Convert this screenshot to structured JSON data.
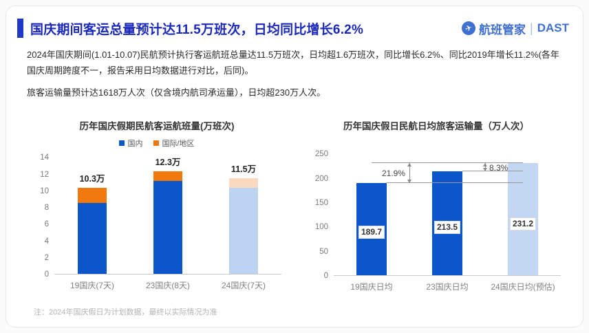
{
  "header": {
    "title": "国庆期间客运总量预计达11.5万班次，日均同比增长6.2%",
    "logo": {
      "brand": "航班管家",
      "divider": "|",
      "suffix": "DAST",
      "icon": "plane-in-circle"
    }
  },
  "intro": {
    "para1": "2024年国庆期间(1.01-10.07)民航预计执行客运航班总量达11.5万班次，日均超1.6万班次，同比增长6.2%、同比2019年增长11.2%(各年国庆周期跨度不一，报告采用日均数据进行对比，后同)。",
    "para2": "旅客运输量预计达1618万人次（仅含境内航司承运量），日均超230万人次。"
  },
  "footnote": "注：2024年国庆假日为计划数据，最终以实际情况为准",
  "colors": {
    "title_blue": "#1b28bc",
    "accent_bar": "#2038c6",
    "logo_blue": "#3f6fd1",
    "bar_blue": "#0b57c9",
    "bar_orange": "#f2790f",
    "forecast_blue": "#bdd3f2",
    "forecast_orange": "#f9d9c0"
  },
  "chart_data": [
    {
      "type": "bar",
      "stacked": true,
      "title": "历年国庆假期民航客运航班量(万班次)",
      "categories": [
        "19国庆(7天)",
        "23国庆(8天)",
        "24国庆(7天)"
      ],
      "series": [
        {
          "name": "国内",
          "values": [
            8.5,
            11.1,
            10.3
          ],
          "color": "#0b57c9",
          "forecast_color": "#bdd3f2"
        },
        {
          "name": "国际/地区",
          "values": [
            1.8,
            1.2,
            1.2
          ],
          "color": "#f2790f",
          "forecast_color": "#f9d9c0"
        }
      ],
      "total_labels": [
        "10.3万",
        "12.3万",
        "11.5万"
      ],
      "forecast_index": 2,
      "ylim": [
        0,
        14
      ],
      "yticks": [
        0,
        2,
        4,
        6,
        8,
        10,
        12,
        14
      ],
      "legend_position": "top",
      "grid": false
    },
    {
      "type": "bar",
      "title": "历年国庆假日民航日均旅客运输量（万人次）",
      "categories": [
        "19国庆日均",
        "23国庆日均",
        "24国庆日均(预估)"
      ],
      "values": [
        189.7,
        213.5,
        231.2
      ],
      "value_labels": [
        "189.7",
        "213.5",
        "231.2"
      ],
      "color": "#0b57c9",
      "forecast_color": "#c3d6f2",
      "forecast_index": 2,
      "ylim": [
        0,
        250
      ],
      "yticks": [
        0,
        50,
        100,
        150,
        200,
        250
      ],
      "annotations": [
        {
          "label": "21.9%",
          "from_bar": 0,
          "from_value": 189.7,
          "to_value": 231.2,
          "label_side": "left"
        },
        {
          "label": "8.3%",
          "from_bar": 1,
          "from_value": 213.5,
          "to_value": 231.2,
          "label_side": "right"
        }
      ],
      "grid": false
    }
  ]
}
